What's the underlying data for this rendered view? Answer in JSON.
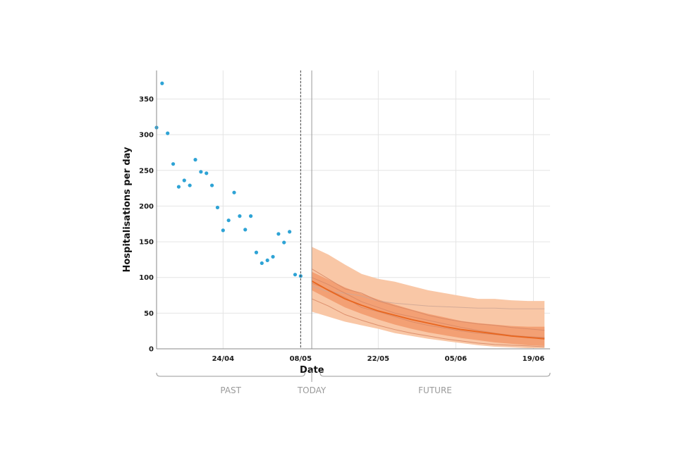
{
  "chart_data": {
    "type": "scatter",
    "xlabel": "Date",
    "ylabel": "Hospitalisations per day",
    "x_ticks": [
      "24/04",
      "08/05",
      "22/05",
      "05/06",
      "19/06"
    ],
    "y_ticks": [
      0,
      50,
      100,
      150,
      200,
      250,
      300,
      350
    ],
    "ylim": [
      0,
      390
    ],
    "xlim": [
      "12/04",
      "22/06"
    ],
    "grid": true,
    "today": "08/05",
    "forecast_start": "10/05",
    "observed": {
      "x": [
        "12/04",
        "13/04",
        "14/04",
        "15/04",
        "16/04",
        "17/04",
        "18/04",
        "19/04",
        "20/04",
        "21/04",
        "22/04",
        "23/04",
        "24/04",
        "25/04",
        "26/04",
        "27/04",
        "28/04",
        "29/04",
        "30/04",
        "01/05",
        "02/05",
        "03/05",
        "04/05",
        "05/05",
        "06/05",
        "07/05",
        "08/05"
      ],
      "y": [
        310,
        372,
        302,
        259,
        227,
        236,
        229,
        265,
        248,
        246,
        229,
        198,
        166,
        180,
        219,
        186,
        167,
        186,
        135,
        120,
        124,
        129,
        161,
        149,
        164,
        104,
        102
      ],
      "color": "#2ea3d5"
    },
    "forecast": {
      "x": [
        "10/05",
        "13/05",
        "16/05",
        "19/05",
        "22/05",
        "25/05",
        "28/05",
        "31/05",
        "03/06",
        "06/06",
        "09/06",
        "12/06",
        "15/06",
        "18/06",
        "21/06"
      ],
      "median": [
        95,
        82,
        70,
        61,
        53,
        47,
        41,
        36,
        31,
        27,
        24,
        21,
        18,
        16,
        14
      ],
      "inner_upper": [
        108,
        97,
        86,
        77,
        69,
        62,
        55,
        49,
        44,
        39,
        36,
        34,
        32,
        31,
        31
      ],
      "inner_lower": [
        82,
        70,
        58,
        49,
        41,
        34,
        28,
        23,
        19,
        15,
        12,
        9,
        7,
        5,
        4
      ],
      "outer_upper": [
        143,
        132,
        118,
        105,
        98,
        94,
        88,
        82,
        78,
        74,
        70,
        70,
        68,
        67,
        67
      ],
      "outer_lower": [
        52,
        45,
        38,
        33,
        28,
        22,
        18,
        14,
        11,
        8,
        5,
        3,
        2,
        1,
        1
      ],
      "trajectories": [
        [
          88,
          80,
          78,
          74,
          67,
          64,
          62,
          60,
          59,
          58,
          57,
          57,
          56,
          56,
          56
        ],
        [
          112,
          98,
          84,
          78,
          67,
          60,
          54,
          47,
          42,
          38,
          35,
          33,
          30,
          28,
          26
        ],
        [
          92,
          83,
          72,
          58,
          52,
          45,
          38,
          33,
          29,
          25,
          22,
          20,
          18,
          17,
          16
        ],
        [
          70,
          60,
          48,
          40,
          33,
          27,
          22,
          18,
          14,
          11,
          8,
          6,
          5,
          4,
          3
        ],
        [
          100,
          90,
          78,
          66,
          58,
          50,
          45,
          40,
          35,
          30,
          26,
          22,
          19,
          17,
          15
        ]
      ],
      "colors": {
        "outer_band": "#f9c7a6",
        "inner_band": "#f3a074",
        "median": "#e8661f",
        "trajectory": "#d98a67",
        "flat_trajectory": "#cfa796"
      }
    },
    "phases": [
      "PAST",
      "TODAY",
      "FUTURE"
    ]
  }
}
